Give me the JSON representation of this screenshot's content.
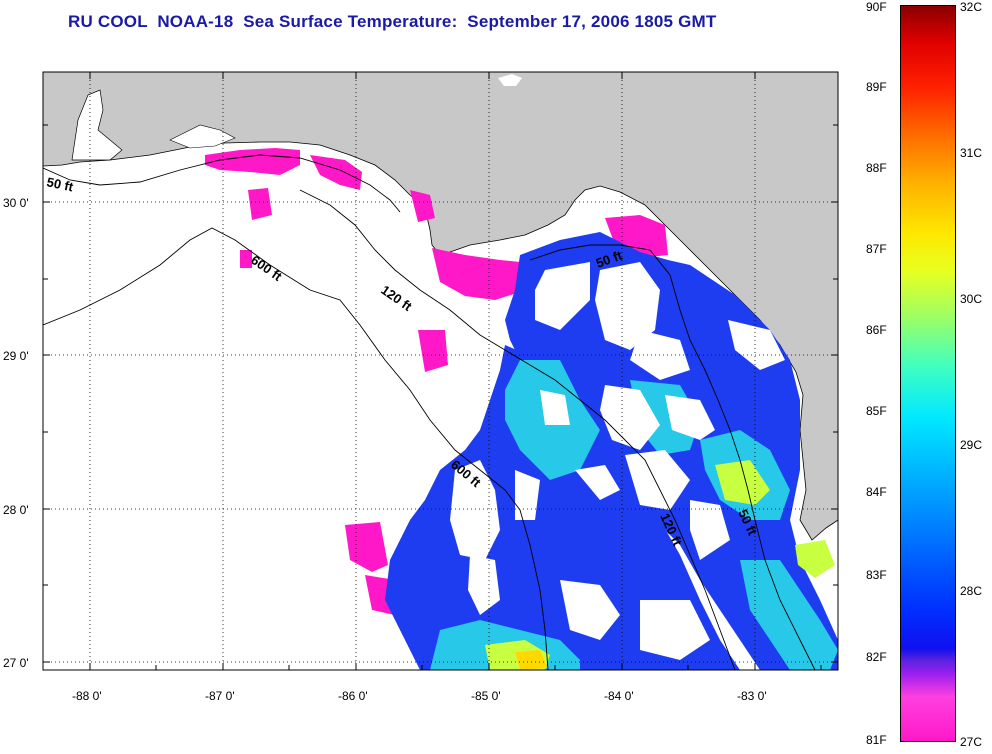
{
  "title": "RU COOL  NOAA-18  Sea Surface Temperature:  September 17, 2006 1805 GMT",
  "colors": {
    "title": "#1a1aa8",
    "land": "#c8c8c8",
    "water": "#ffffff",
    "cold": "#ff18c8",
    "blue": "#1e3cf0",
    "cyan": "#28c8e8",
    "warm": "#c8ff40",
    "hot": "#ffd800"
  },
  "axes": {
    "lat_labels": [
      "30 0'",
      "29 0'",
      "28 0'",
      "27 0'"
    ],
    "lon_labels": [
      "-88 0'",
      "-87 0'",
      "-86 0'",
      "-85 0'",
      "-84 0'",
      "-83 0'"
    ]
  },
  "bathymetry_labels": [
    "50 ft",
    "600 ft",
    "120 ft",
    "50 ft",
    "600 ft",
    "120 ft",
    "50 ft"
  ],
  "colorbar": {
    "fahrenheit": [
      "90F",
      "89F",
      "88F",
      "87F",
      "86F",
      "85F",
      "84F",
      "83F",
      "82F",
      "81F"
    ],
    "celsius": [
      "32C",
      "31C",
      "30C",
      "29C",
      "28C",
      "27C"
    ]
  }
}
